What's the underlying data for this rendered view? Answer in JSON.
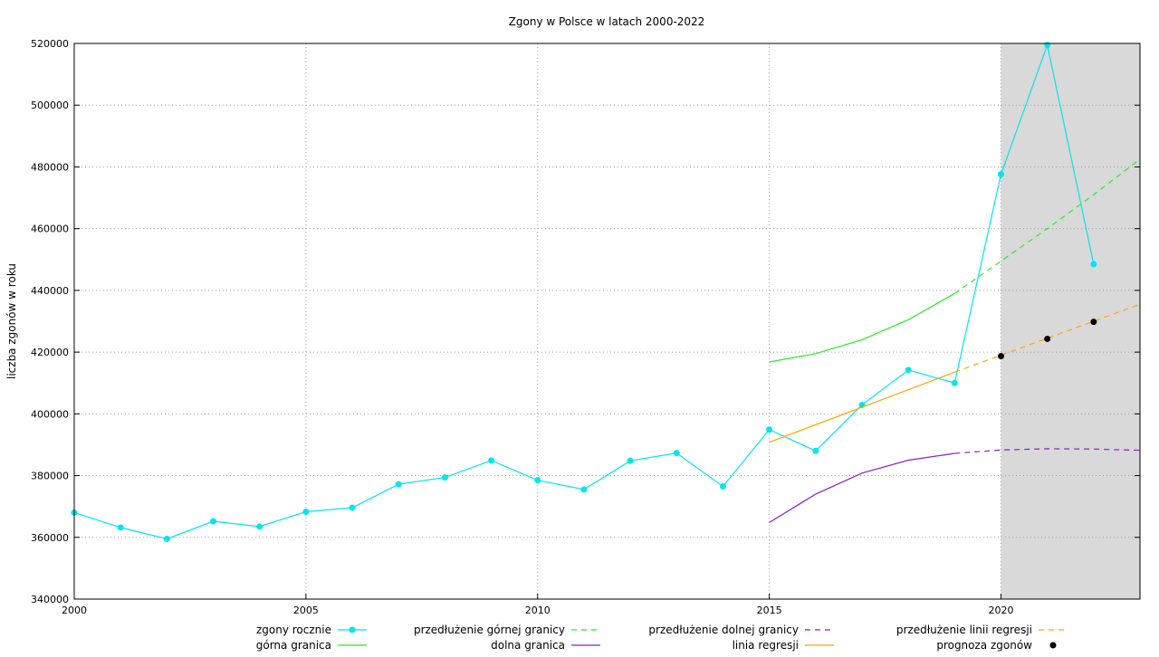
{
  "chart_data": {
    "type": "line",
    "title": "Zgony w Polsce w latach 2000-2022",
    "xlabel": "",
    "ylabel": "liczba zgonów w roku",
    "xlim": [
      2000,
      2023
    ],
    "ylim": [
      340000,
      520000
    ],
    "x_ticks": [
      2000,
      2005,
      2010,
      2015,
      2020
    ],
    "y_ticks": [
      340000,
      360000,
      380000,
      400000,
      420000,
      440000,
      460000,
      480000,
      500000,
      520000
    ],
    "grid": true,
    "shaded_region": {
      "x_from": 2020,
      "x_to": 2023,
      "color": "#d9d9d9"
    },
    "legend_placement": "bottom",
    "series": [
      {
        "name": "zgony rocznie",
        "style": "line-points",
        "color": "#00e5ee",
        "x": [
          2000,
          2001,
          2002,
          2003,
          2004,
          2005,
          2006,
          2007,
          2008,
          2009,
          2010,
          2011,
          2012,
          2013,
          2014,
          2015,
          2016,
          2017,
          2018,
          2019,
          2020,
          2021,
          2022
        ],
        "y": [
          368000,
          363200,
          359500,
          365200,
          363500,
          368300,
          369600,
          377200,
          379400,
          384900,
          378500,
          375500,
          384800,
          387300,
          376500,
          394900,
          388000,
          402900,
          414200,
          410000,
          477600,
          519500,
          448500
        ]
      },
      {
        "name": "górna granica",
        "style": "line",
        "color": "#22ee22",
        "x": [
          2015,
          2016,
          2017,
          2018,
          2019
        ],
        "y": [
          416800,
          419500,
          424000,
          430500,
          439000
        ]
      },
      {
        "name": "przedłużenie górnej granicy",
        "style": "dashed",
        "color": "#22ee22",
        "x": [
          2019,
          2020,
          2021,
          2022,
          2023
        ],
        "y": [
          439000,
          449500,
          460000,
          471000,
          482500
        ]
      },
      {
        "name": "dolna granica",
        "style": "line",
        "color": "#8b1fc9",
        "x": [
          2015,
          2016,
          2017,
          2018,
          2019
        ],
        "y": [
          364800,
          374000,
          380800,
          385000,
          387200
        ]
      },
      {
        "name": "przedłużenie dolnej granicy",
        "style": "dashed",
        "color": "#8b1fc9",
        "x": [
          2019,
          2020,
          2021,
          2022,
          2023
        ],
        "y": [
          387200,
          388300,
          388700,
          388600,
          388200
        ]
      },
      {
        "name": "linia regresji",
        "style": "line",
        "color": "#ffa500",
        "x": [
          2015,
          2019
        ],
        "y": [
          390800,
          413500
        ]
      },
      {
        "name": "przedłużenie linii regresji",
        "style": "dashed",
        "color": "#ffa500",
        "x": [
          2019,
          2023
        ],
        "y": [
          413500,
          435500
        ]
      },
      {
        "name": "prognoza zgonów",
        "style": "points",
        "color": "#000000",
        "x": [
          2020,
          2021,
          2022
        ],
        "y": [
          418700,
          424300,
          429800
        ]
      }
    ]
  }
}
